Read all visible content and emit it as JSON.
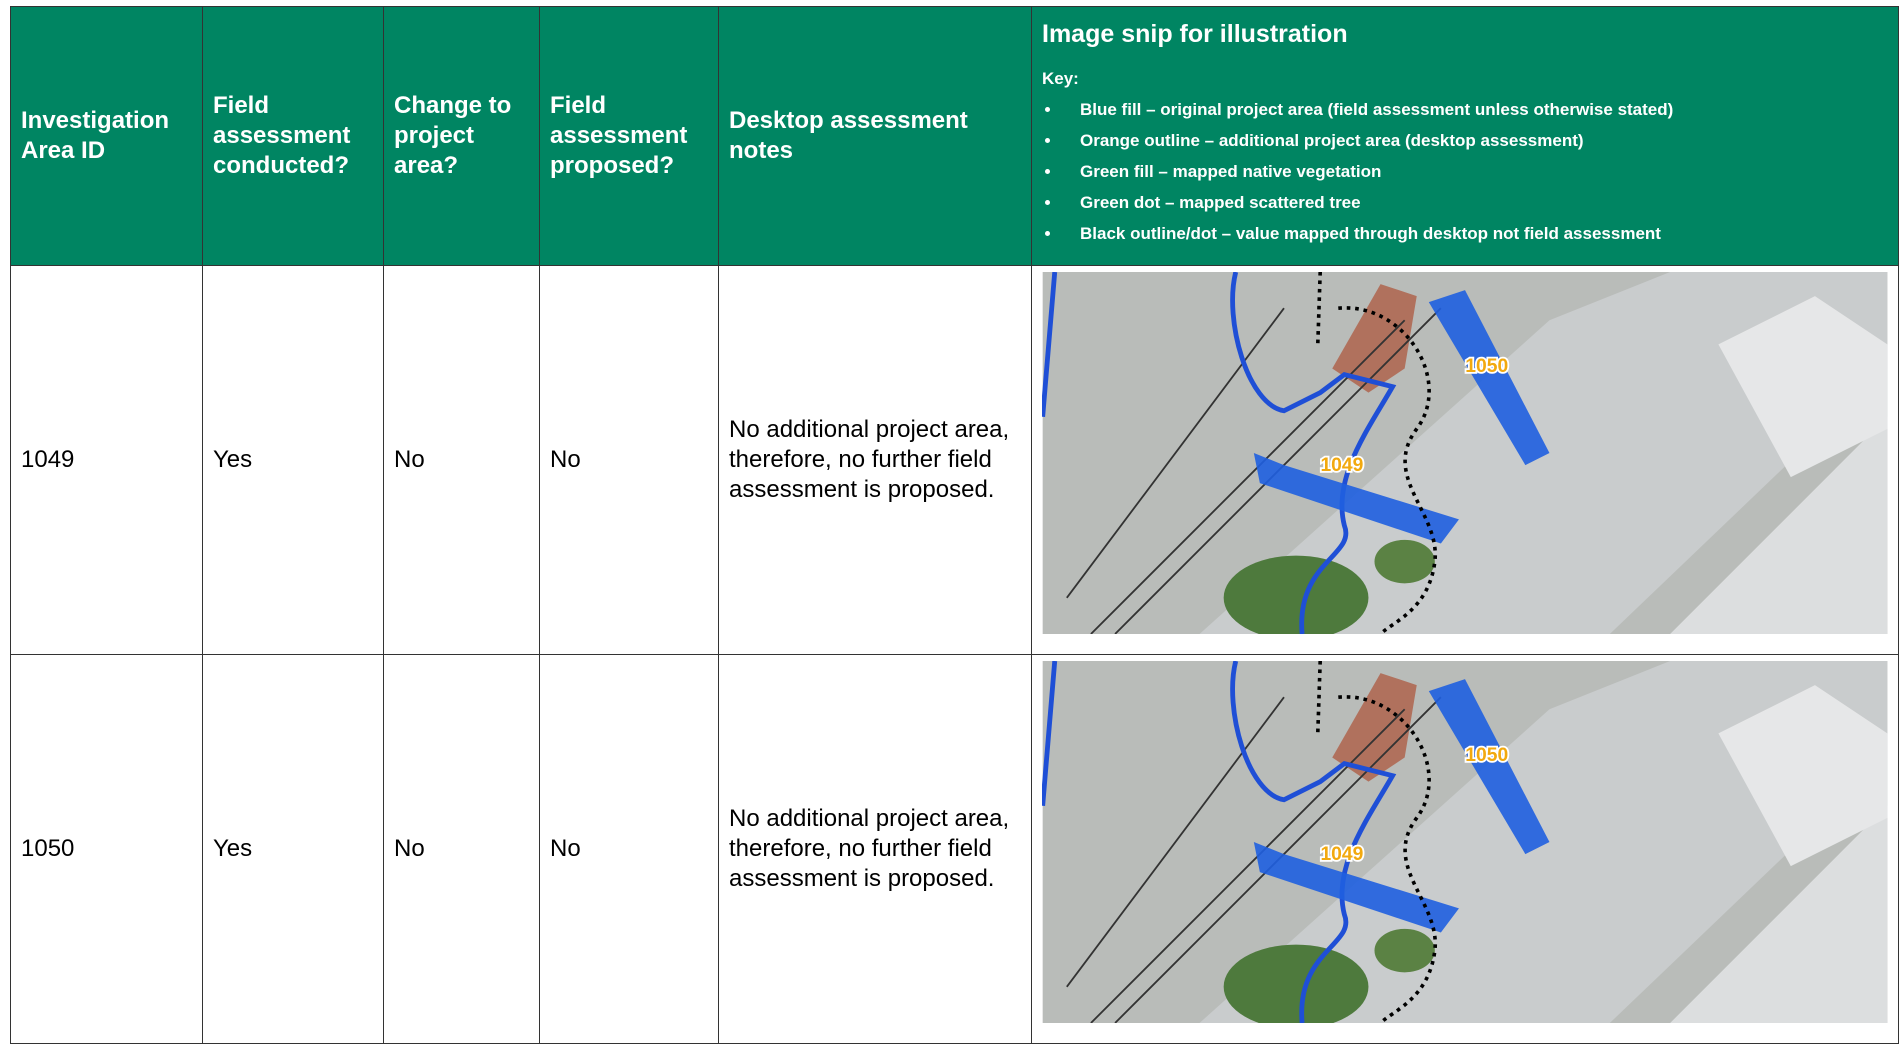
{
  "header": {
    "columns": [
      "Investigation Area ID",
      "Field assessment conducted?",
      "Change to project area?",
      "Field assessment proposed?",
      "Desktop assessment notes"
    ],
    "image_title": "Image snip for illustration",
    "key_title": "Key:",
    "key_items": [
      "Blue fill – original project area (field assessment unless otherwise stated)",
      "Orange outline – additional project area (desktop assessment)",
      "Green fill – mapped native vegetation",
      "Green dot – mapped scattered tree",
      "Black outline/dot – value mapped through desktop not field assessment"
    ]
  },
  "table": {
    "rows": [
      {
        "cells": [
          "1049",
          "Yes",
          "No",
          "No",
          "No additional project area, therefore, no further field assessment is proposed."
        ],
        "map_labels": [
          "1050",
          "1049"
        ]
      },
      {
        "cells": [
          "1050",
          "Yes",
          "No",
          "No",
          "No additional project area, therefore, no further field assessment is proposed."
        ],
        "map_labels": [
          "1050",
          "1049"
        ]
      }
    ]
  }
}
